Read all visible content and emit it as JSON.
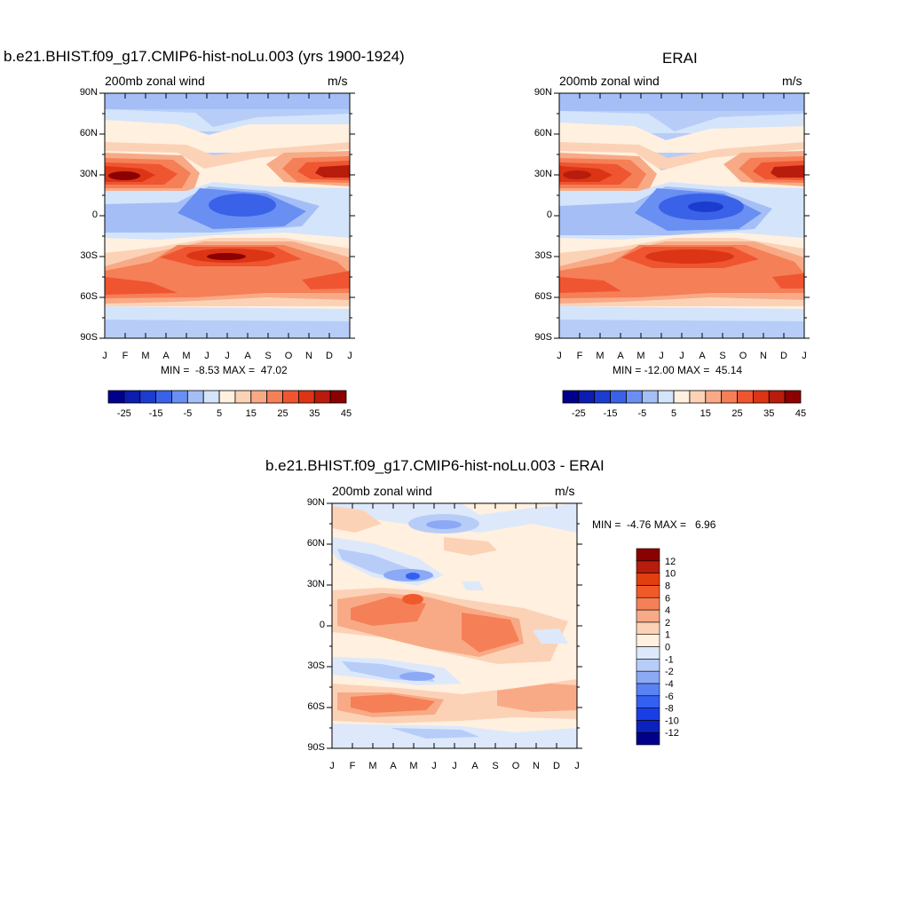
{
  "panels": [
    {
      "title": "b.e21.BHIST.f09_g17.CMIP6-hist-noLu.003 (yrs 1900-1924)",
      "left_label": "200mb zonal wind",
      "right_label": "m/s",
      "stats": "MIN =  -8.53 MAX =  47.02"
    },
    {
      "title": "ERAI",
      "left_label": "200mb zonal wind",
      "right_label": "m/s",
      "stats": "MIN = -12.00 MAX =  45.14"
    },
    {
      "title": "b.e21.BHIST.f09_g17.CMIP6-hist-noLu.003 - ERAI",
      "left_label": "200mb zonal wind",
      "right_label": "m/s",
      "stats": "MIN =  -4.76 MAX =   6.96"
    }
  ],
  "x_ticks": [
    "J",
    "F",
    "M",
    "A",
    "M",
    "J",
    "J",
    "A",
    "S",
    "O",
    "N",
    "D",
    "J"
  ],
  "y_ticks": [
    "90N",
    "60N",
    "30N",
    "0",
    "30S",
    "60S",
    "90S"
  ],
  "colorbar_top": {
    "colors": [
      "#00008b",
      "#0c1cae",
      "#1c3cd0",
      "#3a62e8",
      "#6a8ff3",
      "#a5bff6",
      "#d4e4fb",
      "#fff0e0",
      "#fcd2b7",
      "#f8aa86",
      "#f57f57",
      "#ef5530",
      "#dc3515",
      "#b81c0c",
      "#8b0000"
    ],
    "labels": [
      "-25",
      "-15",
      "-5",
      "5",
      "15",
      "25",
      "35",
      "45"
    ]
  },
  "colorbar_diff": {
    "colors": [
      "#00008b",
      "#0b22bc",
      "#1a3ee6",
      "#3360f0",
      "#5983f4",
      "#8ca9f6",
      "#b7cdf8",
      "#dde9fb",
      "#fff0e0",
      "#fcd2b7",
      "#f8aa86",
      "#f57f57",
      "#f05a2a",
      "#e13f0d",
      "#b81c0c",
      "#8b0000"
    ],
    "labels": [
      "12",
      "10",
      "8",
      "6",
      "4",
      "2",
      "1",
      "0",
      "-1",
      "-2",
      "-4",
      "-6",
      "-8",
      "-10",
      "-12"
    ]
  },
  "chart_data": [
    {
      "type": "heatmap",
      "title": "b.e21.BHIST.f09_g17.CMIP6-hist-noLu.003 (yrs 1900-1924)",
      "variable": "200mb zonal wind",
      "units": "m/s",
      "x_categories": [
        "J",
        "F",
        "M",
        "A",
        "M",
        "J",
        "J",
        "A",
        "S",
        "O",
        "N",
        "D",
        "J"
      ],
      "y_range": [
        "90S",
        "90N"
      ],
      "colorbar_levels": [
        -25,
        -15,
        -5,
        5,
        15,
        25,
        35,
        45
      ],
      "min": -8.53,
      "max": 47.02,
      "features": [
        {
          "lat": 30,
          "month": "Jan",
          "value": 45
        },
        {
          "lat": 30,
          "month": "Dec",
          "value": 40
        },
        {
          "lat": 5,
          "month": "Jul",
          "value": -8
        },
        {
          "lat": -30,
          "month": "Jul",
          "value": 47
        },
        {
          "lat": -45,
          "month": "Jan",
          "value": 30
        }
      ]
    },
    {
      "type": "heatmap",
      "title": "ERAI",
      "variable": "200mb zonal wind",
      "units": "m/s",
      "x_categories": [
        "J",
        "F",
        "M",
        "A",
        "M",
        "J",
        "J",
        "A",
        "S",
        "O",
        "N",
        "D",
        "J"
      ],
      "y_range": [
        "90S",
        "90N"
      ],
      "colorbar_levels": [
        -25,
        -15,
        -5,
        5,
        15,
        25,
        35,
        45
      ],
      "min": -12.0,
      "max": 45.14,
      "features": [
        {
          "lat": 30,
          "month": "Jan",
          "value": 45
        },
        {
          "lat": 30,
          "month": "Dec",
          "value": 40
        },
        {
          "lat": 5,
          "month": "Jul",
          "value": -12
        },
        {
          "lat": -30,
          "month": "Jul",
          "value": 40
        },
        {
          "lat": -45,
          "month": "Jan",
          "value": 30
        }
      ]
    },
    {
      "type": "heatmap",
      "title": "b.e21.BHIST.f09_g17.CMIP6-hist-noLu.003 - ERAI",
      "variable": "200mb zonal wind",
      "units": "m/s",
      "x_categories": [
        "J",
        "F",
        "M",
        "A",
        "M",
        "J",
        "J",
        "A",
        "S",
        "O",
        "N",
        "D",
        "J"
      ],
      "y_range": [
        "90S",
        "90N"
      ],
      "colorbar_levels": [
        -12,
        -10,
        -8,
        -6,
        -4,
        -2,
        -1,
        0,
        1,
        2,
        4,
        6,
        8,
        10,
        12
      ],
      "min": -4.76,
      "max": 6.96,
      "features": [
        {
          "lat": 78,
          "month": "May",
          "value": -3
        },
        {
          "lat": 36,
          "month": "May",
          "value": -5
        },
        {
          "lat": 20,
          "month": "Mar",
          "value": 6
        },
        {
          "lat": 0,
          "month": "Aug",
          "value": 5
        },
        {
          "lat": -35,
          "month": "Mar",
          "value": -3
        },
        {
          "lat": -50,
          "month": "Mar",
          "value": 5
        }
      ]
    }
  ]
}
